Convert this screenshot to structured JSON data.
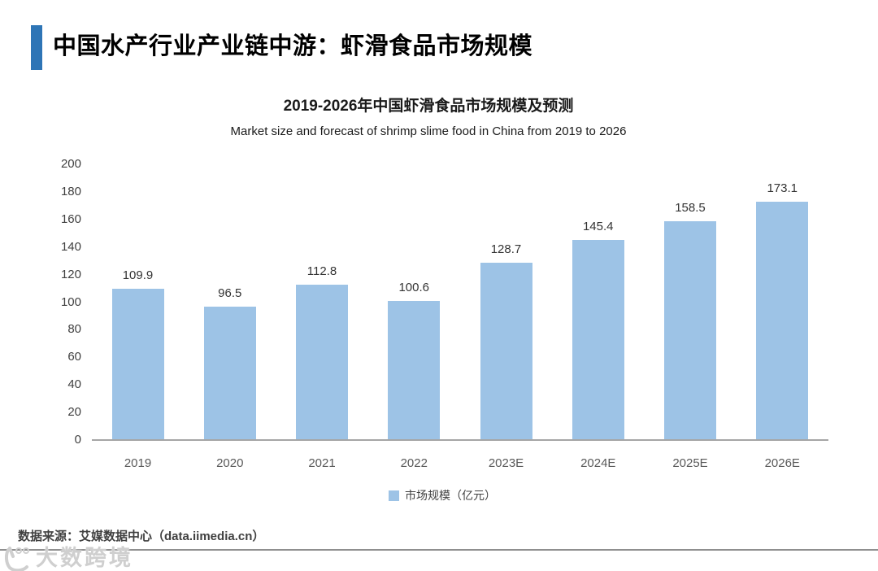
{
  "header": {
    "title": "中国水产行业产业链中游：虾滑食品市场规模"
  },
  "chart_data": {
    "type": "bar",
    "title": "2019-2026年中国虾滑食品市场规模及预测",
    "subtitle": "Market size and forecast of shrimp slime food in China from 2019 to 2026",
    "categories": [
      "2019",
      "2020",
      "2021",
      "2022",
      "2023E",
      "2024E",
      "2025E",
      "2026E"
    ],
    "values": [
      109.9,
      96.5,
      112.8,
      100.6,
      128.7,
      145.4,
      158.5,
      173.1
    ],
    "series_name": "市场规模（亿元）",
    "legend": [
      "市场规模（亿元）"
    ],
    "legend_position": "bottom",
    "xlabel": "",
    "ylabel": "",
    "ylim": [
      0,
      200
    ],
    "ytick_step": 20,
    "grid": false,
    "bar_color": "#9DC3E6"
  },
  "footer": {
    "source": "数据来源：艾媒数据中心（data.iimedia.cn）",
    "watermark": "大数跨境"
  },
  "colors": {
    "accent": "#2E75B6",
    "bar": "#9DC3E6",
    "axis_line": "#A6A6A6",
    "divider": "#8F8F8F"
  }
}
